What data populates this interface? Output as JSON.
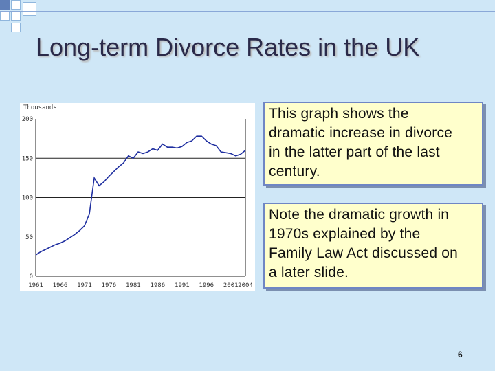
{
  "slide": {
    "title": "Long-term Divorce Rates in the UK",
    "page_number": "6"
  },
  "textboxes": [
    {
      "lines": [
        "This graph shows the",
        "dramatic increase in divorce",
        "in the latter part of the last",
        "century."
      ]
    },
    {
      "lines": [
        "Note the dramatic growth in",
        "1970s explained by the",
        "Family Law Act discussed on",
        "a later slide."
      ]
    }
  ],
  "colors": {
    "background": "#cfe7f7",
    "note_fill": "#ffffcc",
    "note_border": "#6f86c4",
    "line": "#1f2fa0"
  },
  "chart_data": {
    "type": "line",
    "ylabel": "Thousands",
    "ylim": [
      0,
      200
    ],
    "xlim": [
      1961,
      2004
    ],
    "y_ticks": [
      0,
      50,
      100,
      150,
      200
    ],
    "x_tick_labels": [
      "1961",
      "1966",
      "1971",
      "1976",
      "1981",
      "1986",
      "1991",
      "1996",
      "2001",
      "2004"
    ],
    "x_tick_years": [
      1961,
      1966,
      1971,
      1976,
      1981,
      1986,
      1991,
      1996,
      2001,
      2004
    ],
    "gridlines_y": [
      150,
      100
    ],
    "grid": true,
    "series": [
      {
        "x": [
          1961,
          1962,
          1963,
          1964,
          1965,
          1966,
          1967,
          1968,
          1969,
          1970,
          1971,
          1972,
          1973,
          1974,
          1975,
          1976,
          1977,
          1978,
          1979,
          1980,
          1981,
          1982,
          1983,
          1984,
          1985,
          1986,
          1987,
          1988,
          1989,
          1990,
          1991,
          1992,
          1993,
          1994,
          1995,
          1996,
          1997,
          1998,
          1999,
          2000,
          2001,
          2002,
          2003,
          2004
        ],
        "values": [
          27,
          31,
          34,
          37,
          40,
          42,
          45,
          49,
          53,
          58,
          64,
          79,
          125,
          115,
          120,
          127,
          133,
          139,
          144,
          153,
          150,
          158,
          156,
          158,
          162,
          160,
          168,
          164,
          164,
          163,
          165,
          170,
          172,
          178,
          178,
          172,
          168,
          166,
          158,
          157,
          156,
          153,
          155,
          160
        ]
      }
    ]
  }
}
